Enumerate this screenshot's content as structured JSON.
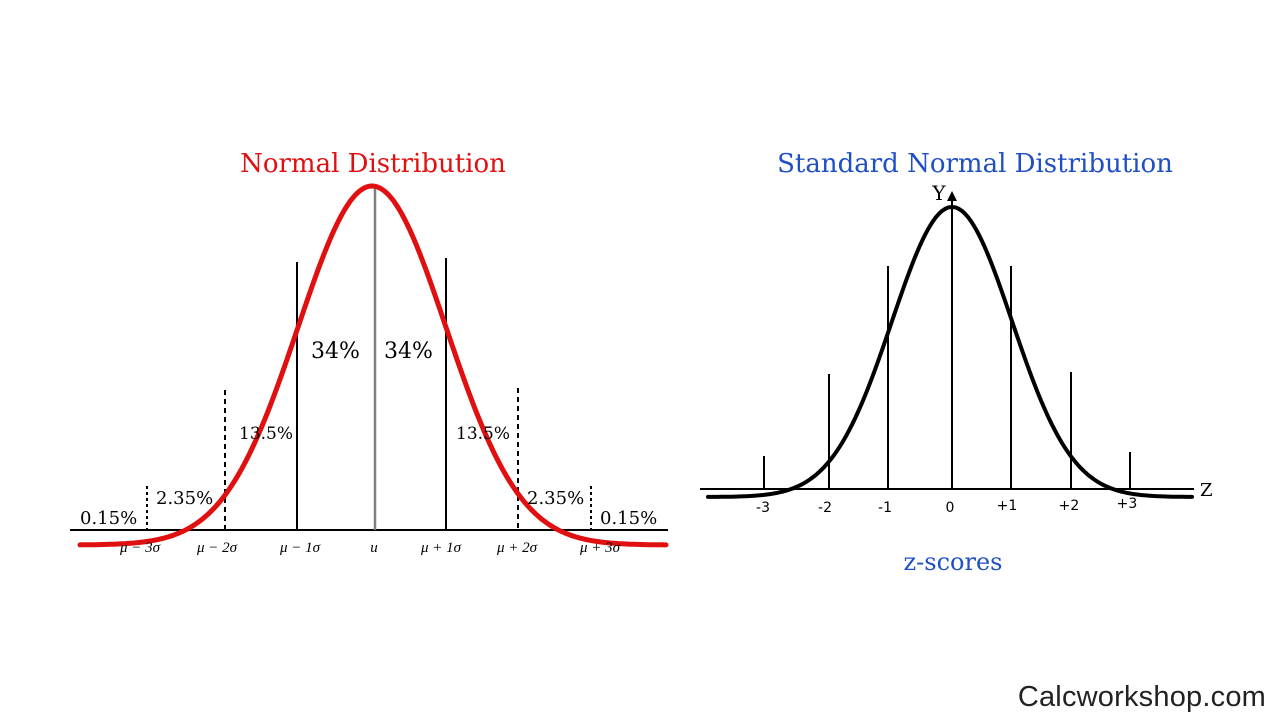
{
  "left_panel": {
    "title": "Normal Distribution",
    "colors": {
      "title": "#e01010",
      "curve": "#e01010",
      "mean_line": "#808080",
      "text": "#000000"
    },
    "percent_labels": {
      "left_tail": "0.15%",
      "left_2_3": "2.35%",
      "left_1_2": "13.5%",
      "left_0_1": "34%",
      "right_0_1": "34%",
      "right_1_2": "13.5%",
      "right_2_3": "2.35%",
      "right_tail": "0.15%"
    },
    "axis_labels": [
      "μ − 3σ",
      "μ − 2σ",
      "μ − 1σ",
      "u",
      "μ + 1σ",
      "μ + 2σ",
      "μ + 3σ"
    ]
  },
  "right_panel": {
    "title": "Standard Normal Distribution",
    "colors": {
      "title": "#1f4fc4",
      "curve": "#000000",
      "xlabel": "#1f4fc4"
    },
    "y_axis_label": "Y",
    "x_axis_label": "Z",
    "z_ticks": [
      "-3",
      "-2",
      "-1",
      "0",
      "+1",
      "+2",
      "+3"
    ],
    "xlabel": "z-scores"
  },
  "watermark": "Calcworkshop.com"
}
